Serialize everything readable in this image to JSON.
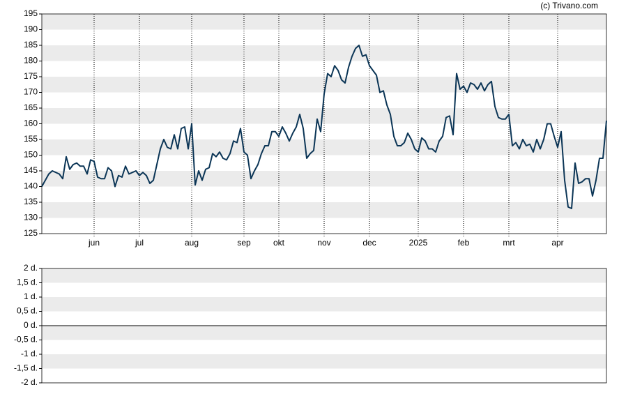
{
  "copyright": "(c) Trivano.com",
  "chart_data": [
    {
      "type": "line",
      "series": [
        {
          "color": "#0b3556",
          "values": [
            140,
            142,
            144,
            145,
            144.5,
            144,
            142.5,
            149.5,
            145.5,
            147,
            147.5,
            146.5,
            146.5,
            144,
            148.5,
            148,
            143,
            142.5,
            142.5,
            146,
            145,
            140,
            143.5,
            143,
            146.5,
            144,
            144.5,
            145,
            143.5,
            144.5,
            143.5,
            141,
            142,
            147,
            152,
            155,
            152.5,
            152,
            156.5,
            152,
            158.5,
            159,
            152,
            160,
            140.5,
            145,
            142,
            145.5,
            146,
            150.5,
            149.5,
            151,
            149,
            148.5,
            150.5,
            154.5,
            154,
            158.5,
            151,
            150,
            142.5,
            145,
            147,
            150.5,
            153,
            153,
            157.5,
            157.5,
            156,
            159,
            157,
            154.5,
            157,
            159,
            163,
            158.5,
            149,
            150.5,
            151.5,
            161.5,
            157.5,
            169.5,
            176,
            175,
            178.5,
            177,
            174,
            173,
            178,
            181.5,
            184,
            185,
            181.5,
            182,
            178.5,
            177,
            175.5,
            170,
            170.5,
            166,
            163,
            156,
            153,
            153,
            154,
            157,
            155,
            152,
            151,
            155.5,
            154.5,
            152,
            152,
            151,
            154.5,
            156,
            162,
            162.5,
            156.5,
            176,
            171,
            172,
            170,
            173,
            172.5,
            171,
            173,
            170.5,
            172.5,
            173.5,
            165.5,
            162,
            161.5,
            161.5,
            163,
            153,
            154,
            152,
            155,
            153,
            153.5,
            151,
            155,
            152,
            155,
            160,
            160,
            156,
            152.5,
            157.5,
            142,
            133.5,
            133,
            147.5,
            141,
            141.5,
            142.5,
            142.5,
            137,
            142,
            149,
            149,
            161
          ]
        }
      ],
      "xlim": [
        0,
        162
      ],
      "xticks": [
        {
          "value": 15,
          "label": "jun"
        },
        {
          "value": 28,
          "label": "jul"
        },
        {
          "value": 43,
          "label": "aug"
        },
        {
          "value": 58,
          "label": "sep"
        },
        {
          "value": 68,
          "label": "okt"
        },
        {
          "value": 81,
          "label": "nov"
        },
        {
          "value": 94,
          "label": "dec"
        },
        {
          "value": 108,
          "label": "2025"
        },
        {
          "value": 121,
          "label": "feb"
        },
        {
          "value": 134,
          "label": "mrt"
        },
        {
          "value": 148,
          "label": "apr"
        }
      ],
      "ylim": [
        125,
        195
      ],
      "yticks": [
        125,
        130,
        135,
        140,
        145,
        150,
        155,
        160,
        165,
        170,
        175,
        180,
        185,
        190,
        195
      ]
    },
    {
      "type": "bar",
      "ylim": [
        -2,
        2
      ],
      "yticks": [
        {
          "value": 2,
          "label": "2 d."
        },
        {
          "value": 1.5,
          "label": "1,5 d."
        },
        {
          "value": 1,
          "label": "1 d."
        },
        {
          "value": 0.5,
          "label": "0,5 d."
        },
        {
          "value": 0,
          "label": "0 d."
        },
        {
          "value": -0.5,
          "label": "-0,5 d."
        },
        {
          "value": -1,
          "label": "-1 d."
        },
        {
          "value": -1.5,
          "label": "-1,5 d."
        },
        {
          "value": -2,
          "label": "-2 d."
        }
      ]
    }
  ]
}
